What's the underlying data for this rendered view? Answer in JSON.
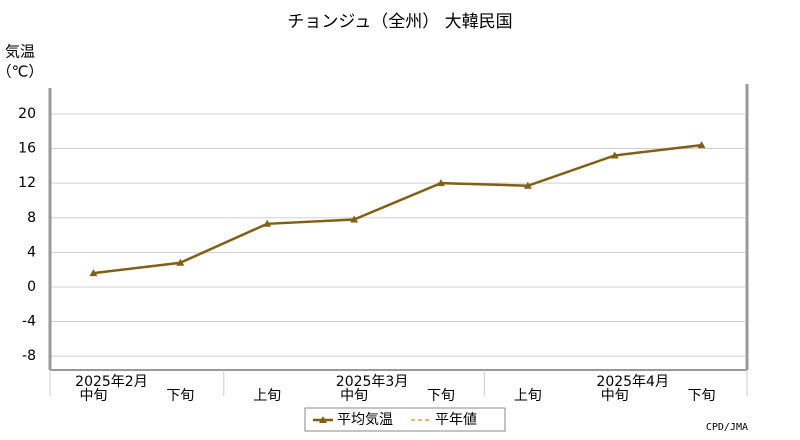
{
  "chart_data": {
    "type": "line",
    "title": "チョンジュ（全州） 大韓民国",
    "y_label": [
      "気温",
      "（℃）"
    ],
    "groups": [
      {
        "label": "2025年2月",
        "categories": [
          "中旬",
          "下旬"
        ]
      },
      {
        "label": "2025年3月",
        "categories": [
          "上旬",
          "中旬",
          "下旬"
        ]
      },
      {
        "label": "2025年4月",
        "categories": [
          "上旬",
          "中旬",
          "下旬"
        ]
      }
    ],
    "series": [
      {
        "name": "平均気温",
        "color": "#806015",
        "values": [
          1.6,
          2.8,
          7.3,
          7.8,
          12.0,
          11.7,
          15.2,
          16.4
        ]
      },
      {
        "name": "平年値",
        "color": "#e8a040",
        "dashed": true,
        "values": [
          null,
          null,
          null,
          null,
          null,
          null,
          null,
          null
        ]
      }
    ],
    "ylim": [
      -9.6,
      23
    ],
    "yticks": [
      -8,
      -4,
      0,
      4,
      8,
      12,
      16,
      20
    ],
    "grid": true,
    "legend": "bottom",
    "credit": "CPD/JMA"
  }
}
